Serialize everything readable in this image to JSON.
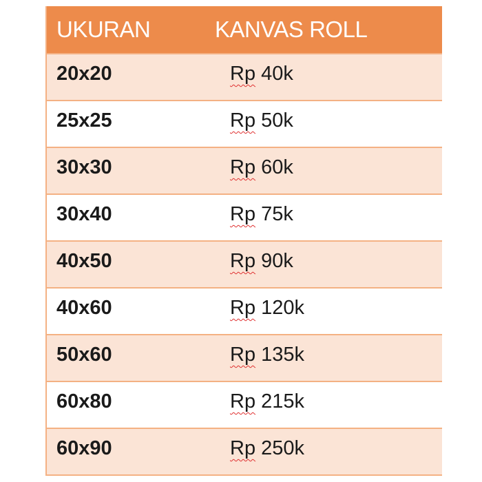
{
  "header": {
    "size": "UKURAN",
    "product": "KANVAS ROLL"
  },
  "currency": "Rp",
  "rows": [
    {
      "size": "20x20",
      "price": "40k"
    },
    {
      "size": "25x25",
      "price": "50k"
    },
    {
      "size": "30x30",
      "price": "60k"
    },
    {
      "size": "30x40",
      "price": "75k"
    },
    {
      "size": "40x50",
      "price": "90k"
    },
    {
      "size": "40x60",
      "price": "120k"
    },
    {
      "size": "50x60",
      "price": "135k"
    },
    {
      "size": "60x80",
      "price": "215k"
    },
    {
      "size": "60x90",
      "price": "250k"
    }
  ],
  "colors": {
    "header": "#ed8b4b",
    "row_alt": "#fbe4d6",
    "border": "#f4b183"
  }
}
